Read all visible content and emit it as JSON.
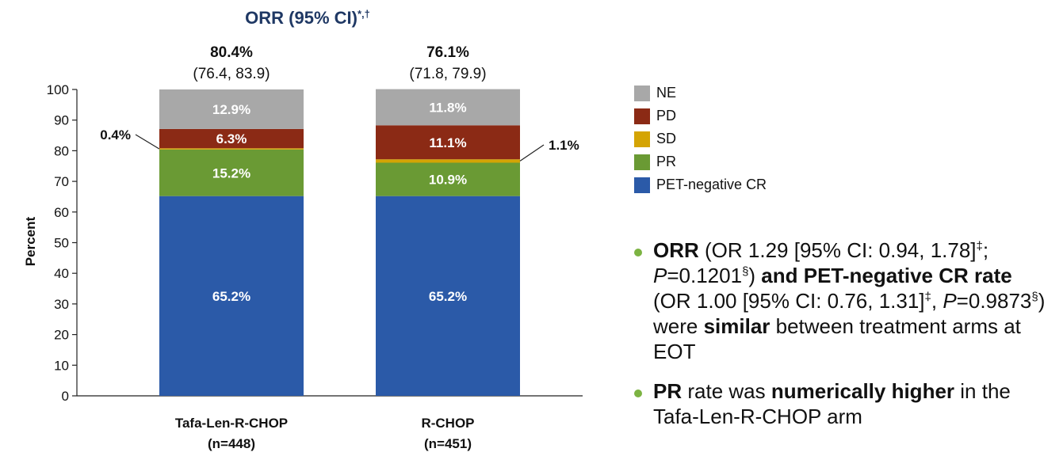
{
  "chart_data": {
    "type": "bar",
    "stacked": true,
    "title": "ORR (95% CI)",
    "title_sup": "*,†",
    "ylabel": "Percent",
    "ylim": [
      0,
      100
    ],
    "yticks": [
      "0",
      "10",
      "20",
      "30",
      "40",
      "50",
      "60",
      "70",
      "80",
      "90",
      "100"
    ],
    "categories": [
      {
        "name": "Tafa-Len-R-CHOP",
        "n": "(n=448)",
        "orr": "80.4%",
        "ci": "(76.4, 83.9)"
      },
      {
        "name": "R-CHOP",
        "n": "(n=451)",
        "orr": "76.1%",
        "ci": "(71.8, 79.9)"
      }
    ],
    "series": [
      {
        "name": "PET-negative CR",
        "color": "#2b5aa8",
        "values": [
          65.2,
          65.2
        ],
        "labels": [
          "65.2%",
          "65.2%"
        ]
      },
      {
        "name": "PR",
        "color": "#6a9a34",
        "values": [
          15.2,
          10.9
        ],
        "labels": [
          "15.2%",
          "10.9%"
        ]
      },
      {
        "name": "SD",
        "color": "#d4a404",
        "values": [
          0.4,
          1.1
        ],
        "labels": [
          "0.4%",
          "1.1%"
        ]
      },
      {
        "name": "PD",
        "color": "#8b2a15",
        "values": [
          6.3,
          11.1
        ],
        "labels": [
          "6.3%",
          "11.1%"
        ]
      },
      {
        "name": "NE",
        "color": "#a8a8a8",
        "values": [
          12.9,
          11.8
        ],
        "labels": [
          "12.9%",
          "11.8%"
        ]
      }
    ],
    "legend_position": "right",
    "legend_order": [
      "NE",
      "PD",
      "SD",
      "PR",
      "PET-negative CR"
    ],
    "grid": false
  },
  "bullets": [
    {
      "segments": [
        {
          "text": "ORR",
          "style": "b"
        },
        {
          "text": " (OR 1.29 [95% CI: 0.94, 1.78]",
          "style": ""
        },
        {
          "text": "‡",
          "style": "sup"
        },
        {
          "text": "; ",
          "style": ""
        },
        {
          "text": "P",
          "style": "i"
        },
        {
          "text": "=0.1201",
          "style": ""
        },
        {
          "text": "§",
          "style": "sup"
        },
        {
          "text": ") ",
          "style": ""
        },
        {
          "text": "and PET-negative CR rate",
          "style": "b"
        },
        {
          "text": " (OR 1.00 [95% CI: 0.76, 1.31]",
          "style": ""
        },
        {
          "text": "‡",
          "style": "sup"
        },
        {
          "text": ", ",
          "style": ""
        },
        {
          "text": "P",
          "style": "i"
        },
        {
          "text": "=0.9873",
          "style": ""
        },
        {
          "text": "§",
          "style": "sup"
        },
        {
          "text": ") were ",
          "style": ""
        },
        {
          "text": "similar",
          "style": "b"
        },
        {
          "text": " between treatment arms at EOT",
          "style": ""
        }
      ]
    },
    {
      "segments": [
        {
          "text": "PR",
          "style": "b"
        },
        {
          "text": " rate was ",
          "style": ""
        },
        {
          "text": "numerically higher",
          "style": "b"
        },
        {
          "text": " in the Tafa-Len-R-CHOP arm",
          "style": ""
        }
      ]
    }
  ]
}
